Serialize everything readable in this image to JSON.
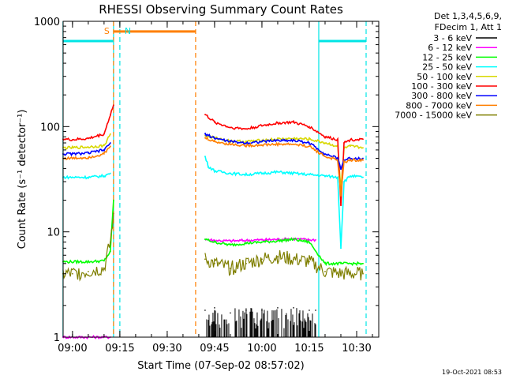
{
  "chart_data": {
    "type": "line",
    "title": "RHESSI Observing Summary Count Rates",
    "xlabel": "Start Time (07-Sep-02 08:57:02)",
    "ylabel": "Count Rate (s⁻¹ detector⁻¹)",
    "y_scale": "log",
    "ylim": [
      1,
      1000
    ],
    "xlim": [
      "08:57:02",
      "10:37:00"
    ],
    "x_ticks": [
      "09:00",
      "09:15",
      "09:30",
      "09:45",
      "10:00",
      "10:15",
      "10:30"
    ],
    "y_ticks": [
      "1",
      "10",
      "100",
      "1000"
    ],
    "legend_header": [
      "Det 1,3,4,5,6,9,",
      "FDecim 1, Att 1"
    ],
    "legend_position": "right",
    "timestamp": "19-Oct-2021 08:53",
    "annotations": [
      {
        "label": "S",
        "time": "09:13",
        "color": "#ff7f00"
      },
      {
        "label": "N",
        "time": "09:15",
        "color": "#00e5e5"
      }
    ],
    "markers": {
      "saa_bar": {
        "from": "09:13",
        "to": "09:39",
        "level": 800,
        "color": "#ff7f00"
      },
      "night_bars": [
        {
          "from": "08:57",
          "to": "09:13",
          "level": 650
        },
        {
          "from": "10:18",
          "to": "10:33",
          "level": 650
        }
      ],
      "vertical_lines": [
        {
          "time": "08:57",
          "color": "#00e5e5",
          "style": "solid"
        },
        {
          "time": "09:13",
          "color": "#00e5e5",
          "style": "solid"
        },
        {
          "time": "09:15",
          "color": "#00e5e5",
          "style": "dashed"
        },
        {
          "time": "09:13",
          "color": "#ff7f00",
          "style": "dashed"
        },
        {
          "time": "09:39",
          "color": "#ff7f00",
          "style": "dashed"
        },
        {
          "time": "10:18",
          "color": "#00e5e5",
          "style": "solid"
        },
        {
          "time": "10:33",
          "color": "#00e5e5",
          "style": "dashed"
        }
      ]
    },
    "series": [
      {
        "name": "3 - 6 keV",
        "color": "#000000",
        "style": "spikes",
        "x": [
          "09:42",
          "09:45",
          "09:50",
          "09:55",
          "10:00",
          "10:05",
          "10:10",
          "10:15",
          "10:17"
        ],
        "y": [
          1.8,
          1.9,
          1.7,
          1.8,
          1.8,
          1.9,
          1.9,
          1.8,
          1.8
        ]
      },
      {
        "name": "6 - 12 keV",
        "color": "#ff00ff",
        "x": [
          "08:57",
          "09:05",
          "09:10",
          "09:11",
          "09:12",
          "09:42",
          "09:45",
          "09:50",
          "09:55",
          "10:00",
          "10:05",
          "10:10",
          "10:15",
          "10:17"
        ],
        "y": [
          1,
          1,
          1,
          1,
          1,
          8.5,
          8.3,
          8.2,
          8.3,
          8.4,
          8.5,
          8.6,
          8.4,
          8.4
        ]
      },
      {
        "name": "12 - 25 keV",
        "color": "#00ff00",
        "x": [
          "08:57",
          "09:05",
          "09:10",
          "09:12",
          "09:13",
          "09:42",
          "09:45",
          "09:50",
          "09:55",
          "10:00",
          "10:05",
          "10:10",
          "10:15",
          "10:20",
          "10:25",
          "10:32"
        ],
        "y": [
          5.2,
          5.2,
          5.3,
          6.5,
          20,
          8.5,
          8.0,
          7.5,
          7.8,
          8.0,
          8.2,
          8.5,
          8.0,
          5.0,
          5.0,
          5.0
        ]
      },
      {
        "name": "25 - 50 keV",
        "color": "#00ffff",
        "x": [
          "08:57",
          "09:00",
          "09:05",
          "09:10",
          "09:12",
          "09:42",
          "09:43",
          "09:45",
          "09:50",
          "09:55",
          "10:00",
          "10:05",
          "10:10",
          "10:15",
          "10:20",
          "10:24",
          "10:25",
          "10:26",
          "10:28",
          "10:32"
        ],
        "y": [
          33,
          33,
          33,
          34,
          36,
          52,
          42,
          38,
          36,
          35,
          36,
          37,
          36,
          35,
          34,
          33,
          7,
          30,
          34,
          33
        ]
      },
      {
        "name": "50 - 100 keV",
        "color": "#d8d800",
        "x": [
          "08:57",
          "09:00",
          "09:05",
          "09:10",
          "09:12",
          "09:42",
          "09:45",
          "09:50",
          "09:55",
          "10:00",
          "10:05",
          "10:10",
          "10:15",
          "10:20",
          "10:24",
          "10:25",
          "10:26",
          "10:28",
          "10:32"
        ],
        "y": [
          63,
          63,
          64,
          66,
          85,
          82,
          78,
          73,
          72,
          74,
          76,
          77,
          76,
          70,
          65,
          25,
          62,
          65,
          63
        ]
      },
      {
        "name": "100 - 300 keV",
        "color": "#ff0000",
        "x": [
          "08:57",
          "09:00",
          "09:05",
          "09:10",
          "09:12",
          "09:13",
          "09:42",
          "09:45",
          "09:50",
          "09:55",
          "10:00",
          "10:05",
          "10:10",
          "10:15",
          "10:20",
          "10:24",
          "10:25",
          "10:26",
          "10:28",
          "10:32"
        ],
        "y": [
          76,
          75,
          77,
          85,
          130,
          160,
          130,
          110,
          98,
          95,
          102,
          108,
          110,
          100,
          80,
          75,
          18,
          70,
          75,
          76
        ]
      },
      {
        "name": "300 - 800 keV",
        "color": "#0000ff",
        "x": [
          "08:57",
          "09:00",
          "09:05",
          "09:10",
          "09:12",
          "09:42",
          "09:45",
          "09:50",
          "09:55",
          "10:00",
          "10:05",
          "10:10",
          "10:15",
          "10:20",
          "10:24",
          "10:25",
          "10:26",
          "10:28",
          "10:32"
        ],
        "y": [
          55,
          55,
          56,
          60,
          70,
          85,
          78,
          72,
          70,
          72,
          74,
          74,
          70,
          55,
          50,
          40,
          48,
          50,
          50
        ]
      },
      {
        "name": "800 - 7000 keV",
        "color": "#ff7f00",
        "x": [
          "08:57",
          "09:00",
          "09:05",
          "09:10",
          "09:12",
          "09:42",
          "09:45",
          "09:50",
          "09:55",
          "10:00",
          "10:05",
          "10:10",
          "10:15",
          "10:20",
          "10:24",
          "10:25",
          "10:26",
          "10:28",
          "10:32"
        ],
        "y": [
          50,
          50,
          51,
          55,
          65,
          78,
          72,
          68,
          66,
          67,
          68,
          68,
          65,
          52,
          48,
          22,
          46,
          48,
          48
        ]
      },
      {
        "name": "7000 - 15000 keV",
        "color": "#7f7f00",
        "style": "noisy",
        "x": [
          "08:57",
          "09:00",
          "09:05",
          "09:10",
          "09:12",
          "09:13",
          "09:42",
          "09:45",
          "09:50",
          "09:55",
          "10:00",
          "10:05",
          "10:10",
          "10:15",
          "10:20",
          "10:25",
          "10:32"
        ],
        "y": [
          4.0,
          4.0,
          4.2,
          4.5,
          8,
          15,
          5.5,
          5.0,
          4.5,
          5.0,
          5.5,
          5.8,
          5.5,
          5.2,
          4.2,
          4.0,
          4.0
        ]
      }
    ]
  }
}
